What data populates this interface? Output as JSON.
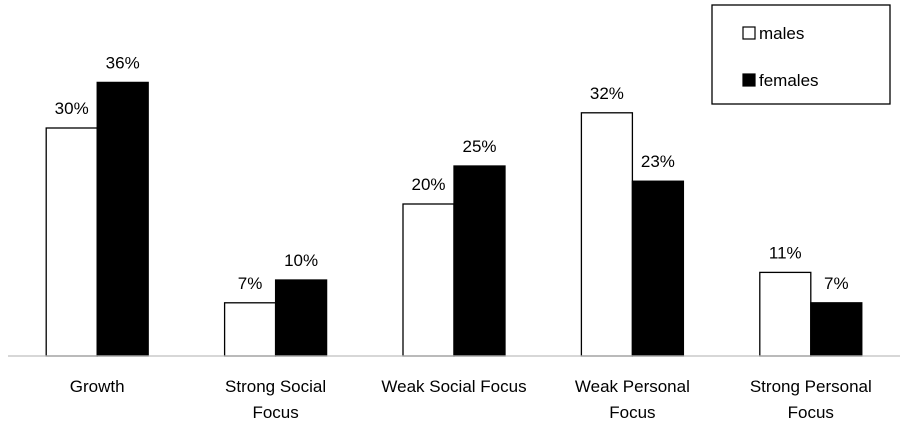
{
  "chart_data": {
    "type": "bar",
    "categories": [
      "Growth",
      "Strong Social Focus",
      "Weak Social Focus",
      "Weak Personal Focus",
      "Strong Personal Focus"
    ],
    "series": [
      {
        "name": "males",
        "color": "#ffffff",
        "values": [
          30,
          7,
          20,
          32,
          11
        ],
        "value_labels": [
          "30%",
          "7%",
          "20%",
          "32%",
          "11%"
        ]
      },
      {
        "name": "females",
        "color": "#000000",
        "values": [
          36,
          10,
          25,
          23,
          7
        ],
        "value_labels": [
          "36%",
          "10%",
          "25%",
          "23%",
          "7%"
        ]
      }
    ],
    "legend": "top-right"
  }
}
